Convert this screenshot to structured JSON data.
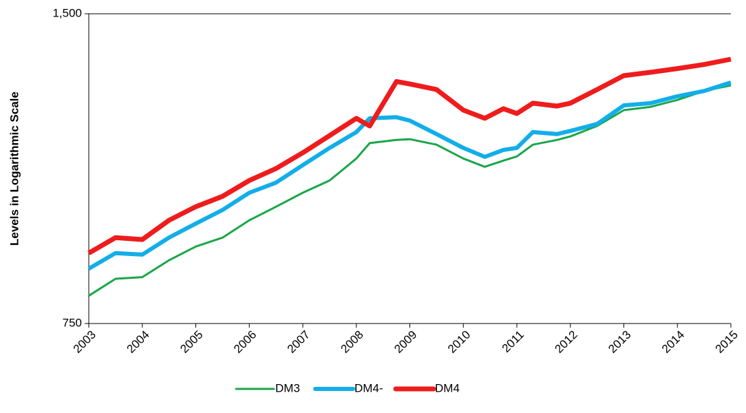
{
  "chart_data": {
    "type": "line",
    "y_label": "Levels in Logarithmic Scale",
    "log_scale": true,
    "x": [
      2003,
      2003.5,
      2004,
      2004.5,
      2005,
      2005.5,
      2006,
      2006.5,
      2007,
      2007.5,
      2008,
      2008.25,
      2008.75,
      2009,
      2009.5,
      2010,
      2010.4,
      2010.75,
      2011,
      2011.3,
      2011.75,
      2012,
      2012.5,
      2013,
      2013.5,
      2014,
      2014.5,
      2015
    ],
    "xlim": [
      2003,
      2015
    ],
    "xticks": [
      2003,
      2004,
      2005,
      2006,
      2007,
      2008,
      2009,
      2010,
      2011,
      2012,
      2013,
      2014,
      2015
    ],
    "ylim": [
      750,
      1500
    ],
    "yticks": [
      750,
      {
        "value": 1500,
        "label": "1,500"
      }
    ],
    "legend": "bottom",
    "series": [
      {
        "name": "DM3",
        "color": "#1aa64a",
        "values": [
          798,
          829,
          832,
          864,
          891,
          909,
          945,
          974,
          1005,
          1033,
          1085,
          1123,
          1131,
          1133,
          1119,
          1085,
          1065,
          1080,
          1090,
          1119,
          1131,
          1140,
          1167,
          1209,
          1218,
          1237,
          1262,
          1278
        ]
      },
      {
        "name": "DM4-",
        "color": "#12aee8",
        "values": [
          848,
          878,
          875,
          909,
          938,
          967,
          1005,
          1028,
          1069,
          1111,
          1151,
          1187,
          1190,
          1181,
          1146,
          1111,
          1089,
          1106,
          1111,
          1151,
          1146,
          1154,
          1172,
          1222,
          1228,
          1247,
          1262,
          1286
        ]
      },
      {
        "name": "DM4",
        "color": "#ee1c1c",
        "values": [
          878,
          909,
          905,
          945,
          974,
          997,
          1033,
          1061,
          1099,
          1142,
          1187,
          1167,
          1289,
          1282,
          1266,
          1209,
          1187,
          1213,
          1200,
          1228,
          1220,
          1228,
          1266,
          1306,
          1316,
          1327,
          1339,
          1355
        ]
      }
    ]
  }
}
